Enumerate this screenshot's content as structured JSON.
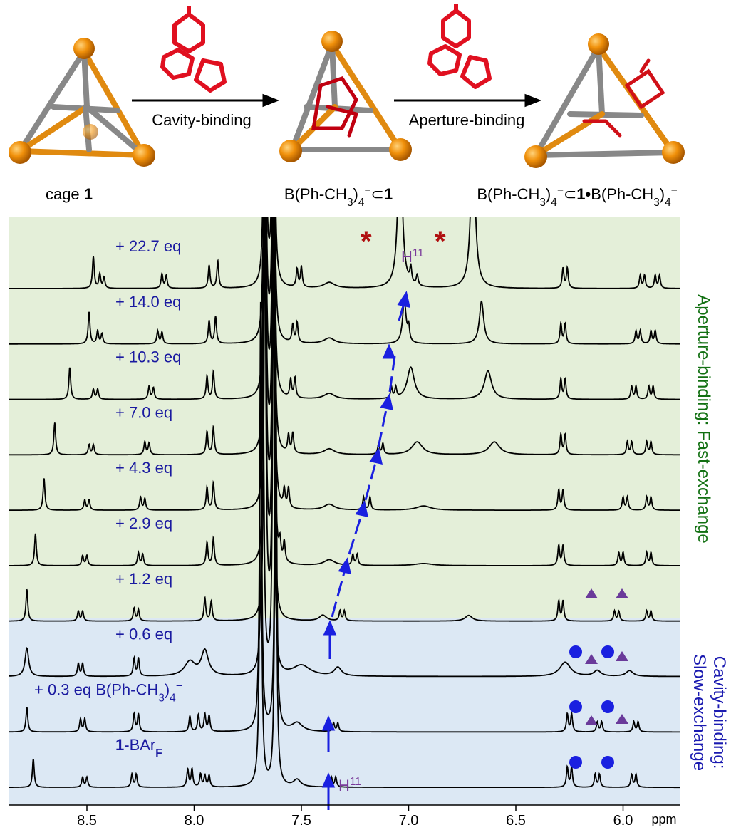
{
  "scheme": {
    "arrows": [
      "Cavity-binding",
      "Aperture-binding"
    ],
    "species": [
      [
        {
          "text": "cage "
        },
        {
          "text": "1",
          "bold": true
        }
      ],
      [
        {
          "text": "B(Ph-CH"
        },
        {
          "text": "3",
          "sub": true
        },
        {
          "text": ")"
        },
        {
          "text": "4",
          "sub": true
        },
        {
          "text": "−",
          "sup": true
        },
        {
          "text": "⊂"
        },
        {
          "text": "1",
          "bold": true
        }
      ],
      [
        {
          "text": "B(Ph-CH"
        },
        {
          "text": "3",
          "sub": true
        },
        {
          "text": ")"
        },
        {
          "text": "4",
          "sub": true
        },
        {
          "text": "−",
          "sup": true
        },
        {
          "text": "⊂"
        },
        {
          "text": "1•",
          "bold": true
        },
        {
          "text": "B(Ph-CH"
        },
        {
          "text": "3",
          "sub": true
        },
        {
          "text": ")"
        },
        {
          "text": "4",
          "sub": true
        },
        {
          "text": "−",
          "sup": true
        }
      ]
    ]
  },
  "spectra": [
    {
      "label": [
        {
          "text": "+ 22.7 eq"
        }
      ],
      "peaks": [
        [
          8.47,
          45
        ],
        [
          8.44,
          20
        ],
        [
          8.42,
          15
        ],
        [
          8.15,
          20
        ],
        [
          8.13,
          18
        ],
        [
          7.93,
          32
        ],
        [
          7.89,
          38
        ],
        [
          7.67,
          600
        ],
        [
          7.63,
          600
        ],
        [
          7.52,
          25
        ],
        [
          7.5,
          28
        ],
        [
          7.37,
          8,
          0.03
        ],
        [
          7.04,
          220,
          0.012
        ],
        [
          6.99,
          22
        ],
        [
          6.96,
          15
        ],
        [
          6.7,
          220,
          0.012
        ],
        [
          6.28,
          28
        ],
        [
          6.26,
          28
        ],
        [
          5.92,
          18
        ],
        [
          5.9,
          18
        ],
        [
          5.85,
          18
        ],
        [
          5.83,
          18
        ]
      ]
    },
    {
      "label": [
        {
          "text": "+ 14.0 eq"
        }
      ],
      "peaks": [
        [
          8.49,
          45
        ],
        [
          8.45,
          18
        ],
        [
          8.43,
          14
        ],
        [
          8.17,
          18
        ],
        [
          8.15,
          16
        ],
        [
          7.93,
          32
        ],
        [
          7.9,
          38
        ],
        [
          7.67,
          600
        ],
        [
          7.63,
          600
        ],
        [
          7.54,
          25
        ],
        [
          7.52,
          28
        ],
        [
          7.37,
          8,
          0.03
        ],
        [
          7.02,
          60,
          0.01
        ],
        [
          7.0,
          20
        ],
        [
          6.66,
          60,
          0.012
        ],
        [
          6.29,
          28
        ],
        [
          6.27,
          28
        ],
        [
          5.94,
          18
        ],
        [
          5.92,
          18
        ],
        [
          5.87,
          18
        ],
        [
          5.85,
          18
        ]
      ]
    },
    {
      "label": [
        {
          "text": "+ 10.3 eq"
        }
      ],
      "peaks": [
        [
          8.58,
          45
        ],
        [
          8.47,
          14
        ],
        [
          8.45,
          14
        ],
        [
          8.21,
          18
        ],
        [
          8.19,
          16
        ],
        [
          7.94,
          32
        ],
        [
          7.91,
          38
        ],
        [
          7.67,
          600
        ],
        [
          7.63,
          600
        ],
        [
          7.55,
          25
        ],
        [
          7.53,
          28
        ],
        [
          7.37,
          8,
          0.03
        ],
        [
          7.08,
          15
        ],
        [
          7.06,
          15
        ],
        [
          6.99,
          45,
          0.02
        ],
        [
          6.63,
          40,
          0.02
        ],
        [
          6.29,
          28
        ],
        [
          6.27,
          28
        ],
        [
          5.96,
          18
        ],
        [
          5.94,
          18
        ],
        [
          5.88,
          18
        ],
        [
          5.86,
          18
        ]
      ]
    },
    {
      "label": [
        {
          "text": "+ 7.0 eq"
        }
      ],
      "peaks": [
        [
          8.65,
          45
        ],
        [
          8.49,
          14
        ],
        [
          8.47,
          14
        ],
        [
          8.23,
          18
        ],
        [
          8.21,
          16
        ],
        [
          7.94,
          32
        ],
        [
          7.91,
          38
        ],
        [
          7.67,
          600
        ],
        [
          7.63,
          600
        ],
        [
          7.56,
          25
        ],
        [
          7.54,
          28
        ],
        [
          7.37,
          8,
          0.03
        ],
        [
          7.14,
          15
        ],
        [
          7.12,
          15
        ],
        [
          6.96,
          18,
          0.03
        ],
        [
          6.6,
          18,
          0.03
        ],
        [
          6.29,
          28
        ],
        [
          6.27,
          28
        ],
        [
          5.98,
          18
        ],
        [
          5.96,
          18
        ],
        [
          5.89,
          18
        ],
        [
          5.87,
          18
        ]
      ]
    },
    {
      "label": [
        {
          "text": "+ 4.3 eq"
        }
      ],
      "peaks": [
        [
          8.7,
          45
        ],
        [
          8.51,
          14
        ],
        [
          8.49,
          14
        ],
        [
          8.25,
          18
        ],
        [
          8.23,
          16
        ],
        [
          7.94,
          32
        ],
        [
          7.91,
          38
        ],
        [
          7.67,
          600
        ],
        [
          7.63,
          600
        ],
        [
          7.58,
          25
        ],
        [
          7.56,
          28
        ],
        [
          7.37,
          8,
          0.03
        ],
        [
          7.21,
          18
        ],
        [
          7.18,
          18
        ],
        [
          6.93,
          6,
          0.04
        ],
        [
          6.3,
          28
        ],
        [
          6.28,
          28
        ],
        [
          6.0,
          18
        ],
        [
          5.98,
          18
        ],
        [
          5.89,
          18
        ],
        [
          5.87,
          18
        ]
      ]
    },
    {
      "label": [
        {
          "text": "+ 2.9 eq"
        }
      ],
      "peaks": [
        [
          8.74,
          45
        ],
        [
          8.52,
          14
        ],
        [
          8.5,
          14
        ],
        [
          8.26,
          18
        ],
        [
          8.24,
          16
        ],
        [
          7.94,
          32
        ],
        [
          7.91,
          38
        ],
        [
          7.67,
          600
        ],
        [
          7.63,
          600
        ],
        [
          7.6,
          25
        ],
        [
          7.58,
          28
        ],
        [
          7.37,
          8,
          0.03
        ],
        [
          7.26,
          15
        ],
        [
          7.24,
          15
        ],
        [
          6.93,
          3,
          0.05
        ],
        [
          6.3,
          28
        ],
        [
          6.28,
          28
        ],
        [
          6.02,
          18
        ],
        [
          6.0,
          18
        ],
        [
          5.89,
          18
        ],
        [
          5.87,
          18
        ]
      ]
    },
    {
      "label": [
        {
          "text": "+ 1.2 eq"
        }
      ],
      "peaks": [
        [
          8.78,
          45
        ],
        [
          8.54,
          14
        ],
        [
          8.52,
          14
        ],
        [
          8.28,
          18
        ],
        [
          8.26,
          16
        ],
        [
          7.95,
          32
        ],
        [
          7.92,
          28
        ],
        [
          7.67,
          600
        ],
        [
          7.63,
          600
        ],
        [
          7.4,
          8,
          0.02
        ],
        [
          7.32,
          14
        ],
        [
          7.3,
          14
        ],
        [
          6.72,
          8,
          0.02
        ],
        [
          6.3,
          28
        ],
        [
          6.28,
          28
        ],
        [
          6.04,
          14
        ],
        [
          6.02,
          14
        ],
        [
          5.89,
          14
        ],
        [
          5.87,
          14
        ]
      ]
    },
    {
      "label": [
        {
          "text": "+ 0.6 eq"
        }
      ],
      "peaks": [
        [
          8.78,
          40,
          0.01
        ],
        [
          8.54,
          18
        ],
        [
          8.52,
          18
        ],
        [
          8.28,
          25
        ],
        [
          8.26,
          25
        ],
        [
          8.02,
          20,
          0.03
        ],
        [
          7.95,
          35,
          0.02
        ],
        [
          7.68,
          600
        ],
        [
          7.63,
          600
        ],
        [
          7.5,
          15,
          0.05
        ],
        [
          7.33,
          12,
          0.02
        ],
        [
          6.27,
          20,
          0.03
        ],
        [
          6.12,
          8,
          0.02
        ],
        [
          5.97,
          8,
          0.02
        ]
      ]
    },
    {
      "label": [
        {
          "text": "+ 0.3 eq B(Ph-CH"
        },
        {
          "text": "3",
          "sub": true
        },
        {
          "text": ")"
        },
        {
          "text": "4",
          "sub": true
        },
        {
          "text": "−",
          "sup": true
        }
      ],
      "peaks": [
        [
          8.78,
          35
        ],
        [
          8.53,
          18
        ],
        [
          8.51,
          18
        ],
        [
          8.28,
          25
        ],
        [
          8.26,
          25
        ],
        [
          8.02,
          22
        ],
        [
          7.98,
          24
        ],
        [
          7.95,
          24
        ],
        [
          7.93,
          22
        ],
        [
          7.69,
          600
        ],
        [
          7.62,
          600
        ],
        [
          7.52,
          12,
          0.03
        ],
        [
          7.35,
          12
        ],
        [
          7.33,
          12
        ],
        [
          6.26,
          25
        ],
        [
          6.24,
          25
        ],
        [
          6.12,
          14
        ],
        [
          6.1,
          14
        ],
        [
          5.95,
          14
        ],
        [
          5.93,
          14
        ]
      ]
    },
    {
      "label": [
        {
          "text": "1",
          "bold": true
        },
        {
          "text": "-BAr",
          "bold": false
        },
        {
          "text": "F",
          "sub": true,
          "bold": true
        }
      ],
      "peaks": [
        [
          8.75,
          40
        ],
        [
          8.52,
          14
        ],
        [
          8.5,
          14
        ],
        [
          8.29,
          18
        ],
        [
          8.27,
          18
        ],
        [
          8.03,
          25
        ],
        [
          8.01,
          25
        ],
        [
          7.97,
          18
        ],
        [
          7.95,
          16
        ],
        [
          7.93,
          16
        ],
        [
          7.69,
          600
        ],
        [
          7.62,
          600
        ],
        [
          7.52,
          10,
          0.02
        ],
        [
          7.36,
          14
        ],
        [
          7.34,
          14
        ],
        [
          6.26,
          28
        ],
        [
          6.24,
          28
        ],
        [
          6.13,
          18
        ],
        [
          6.11,
          18
        ],
        [
          5.96,
          18
        ],
        [
          5.94,
          18
        ]
      ]
    }
  ],
  "annotations": {
    "h11_top": [
      {
        "text": "H"
      },
      {
        "text": "11",
        "sup": true
      }
    ],
    "h11_bottom": [
      {
        "text": "H"
      },
      {
        "text": "11",
        "sup": true
      }
    ]
  },
  "regions": {
    "fast": "Aperture-binding: Fast-exchange",
    "slow": [
      "Cavity-binding:",
      "Slow-exchange"
    ]
  },
  "axis": {
    "ticks": [
      8.5,
      {
        "value": 8,
        "label": "8.0"
      },
      7.5,
      {
        "value": 7,
        "label": "7.0"
      },
      6.5,
      {
        "value": 6,
        "label": "6.0"
      }
    ],
    "unit": "ppm"
  }
}
